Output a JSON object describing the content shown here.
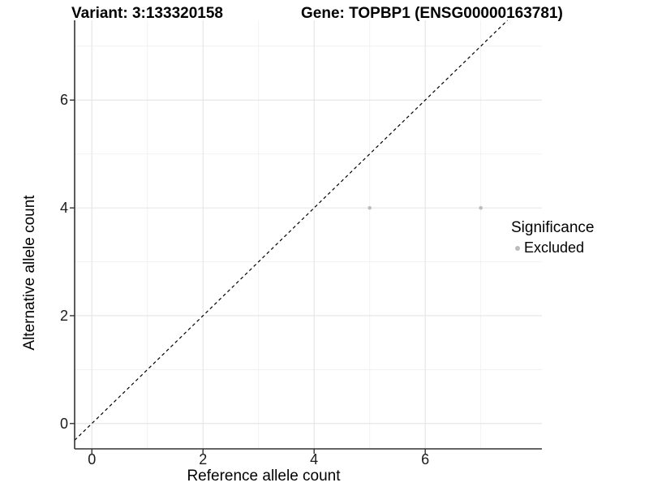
{
  "titles": {
    "left": "Variant: 3:133320158",
    "right": "Gene: TOPBP1 (ENSG00000163781)"
  },
  "chart_data": {
    "type": "scatter",
    "title_left": "Variant: 3:133320158",
    "title_right": "Gene: TOPBP1 (ENSG00000163781)",
    "xlabel": "Reference allele count",
    "ylabel": "Alternative allele count",
    "points": [
      {
        "x": 5,
        "y": 4,
        "series": "Excluded"
      },
      {
        "x": 7,
        "y": 4,
        "series": "Excluded"
      }
    ],
    "xlim": [
      -0.31,
      8.1
    ],
    "ylim": [
      -0.47,
      7.48
    ],
    "x_ticks": [
      0,
      2,
      4,
      6
    ],
    "y_ticks": [
      0,
      2,
      4,
      6
    ],
    "x_minor_gridlines": [
      1,
      3,
      5,
      7
    ],
    "y_minor_gridlines": [
      1,
      3,
      5,
      7
    ],
    "identity_line": {
      "slope": 1,
      "intercept": 0,
      "style": "dashed",
      "color": "#000000"
    },
    "point_color": "#bdbdbd",
    "point_radius": 2.3,
    "grid": true,
    "legend_position": "right"
  },
  "legend": {
    "title": "Significance",
    "items": [
      {
        "label": "Excluded",
        "color": "#bdbdbd"
      }
    ]
  },
  "colors": {
    "background": "#ffffff",
    "axis_line": "#333333",
    "major_grid": "#e4e4e4",
    "minor_grid": "#f0f0f0",
    "tick": "#333333",
    "text": "#000000"
  }
}
